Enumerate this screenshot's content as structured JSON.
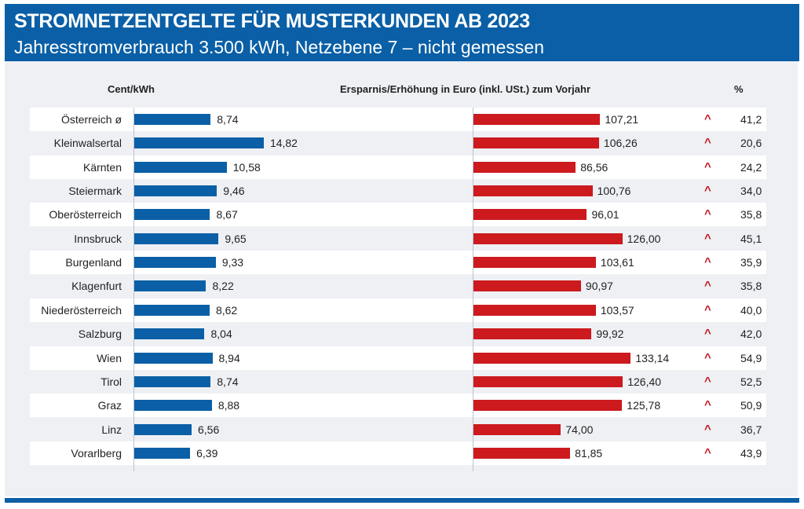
{
  "header": {
    "title": "STROMNETZENTGELTE FÜR MUSTERKUNDEN AB 2023",
    "subtitle": "Jahresstromverbrauch 3.500 kWh, Netzebene 7 – nicht gemessen"
  },
  "columns": {
    "left": "Cent/kWh",
    "middle": "Ersparnis/Erhöhung in Euro (inkl. USt.) zum Vorjahr",
    "right": "%"
  },
  "colors": {
    "blue": "#0a5fa6",
    "red": "#cc1a1e",
    "arrow": "#c0161c"
  },
  "chart_data": {
    "type": "bar",
    "orientation": "horizontal",
    "categories": [
      "Österreich ø",
      "Kleinwalsertal",
      "Kärnten",
      "Steiermark",
      "Oberösterreich",
      "Innsbruck",
      "Burgenland",
      "Klagenfurt",
      "Niederösterreich",
      "Salzburg",
      "Wien",
      "Tirol",
      "Graz",
      "Linz",
      "Vorarlberg"
    ],
    "series": [
      {
        "name": "Cent/kWh",
        "values": [
          8.74,
          14.82,
          10.58,
          9.46,
          8.67,
          9.65,
          9.33,
          8.22,
          8.62,
          8.04,
          8.94,
          8.74,
          8.88,
          6.56,
          6.39
        ],
        "labels": [
          "8,74",
          "14,82",
          "10,58",
          "9,46",
          "8,67",
          "9,65",
          "9,33",
          "8,22",
          "8,62",
          "8,04",
          "8,94",
          "8,74",
          "8,88",
          "6,56",
          "6,39"
        ]
      },
      {
        "name": "Ersparnis/Erhöhung in Euro (inkl. USt.) zum Vorjahr",
        "values": [
          107.21,
          106.26,
          86.56,
          100.76,
          96.01,
          126.0,
          103.61,
          90.97,
          103.57,
          99.92,
          133.14,
          126.4,
          125.78,
          74.0,
          81.85
        ],
        "labels": [
          "107,21",
          "106,26",
          "86,56",
          "100,76",
          "96,01",
          "126,00",
          "103,61",
          "90,97",
          "103,57",
          "99,92",
          "133,14",
          "126,40",
          "125,78",
          "74,00",
          "81,85"
        ]
      }
    ],
    "percent_change": {
      "direction": "up",
      "icon": "caret-up-icon",
      "labels": [
        "41,2",
        "20,6",
        "24,2",
        "34,0",
        "35,8",
        "45,1",
        "35,9",
        "35,8",
        "40,0",
        "42,0",
        "54,9",
        "52,5",
        "50,9",
        "36,7",
        "43,9"
      ]
    },
    "grid": false,
    "legend": "none"
  }
}
